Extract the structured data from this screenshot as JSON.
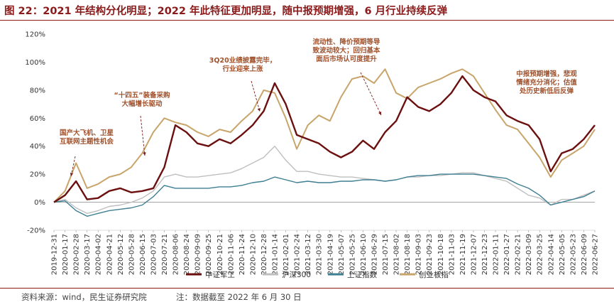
{
  "title": "图 22：2021 年结构分化明显；2022 年此特征更加明显，随中报预期增强，6 月行业持续反弹",
  "footer": {
    "source": "资料来源：wind，民生证券研究院",
    "note": "注：数据截至 2022 年 6 月 30 日"
  },
  "colors": {
    "title": "#8b1a1a",
    "zhongzheng_jungong": "#6b0f0f",
    "hushen300": "#bfbfbf",
    "shangzheng": "#3e7f92",
    "chuangye": "#c8a56a",
    "annotation": "#a0522d"
  },
  "chart_data": {
    "type": "line",
    "title": "",
    "xlabel": "",
    "ylabel": "",
    "ylim": [
      -20,
      120
    ],
    "yticks": [
      "120%",
      "100%",
      "80%",
      "60%",
      "40%",
      "20%",
      "0%",
      "-20%"
    ],
    "ytick_values": [
      120,
      100,
      80,
      60,
      40,
      20,
      0,
      -20
    ],
    "categories": [
      "2019-12-31",
      "2020-01-17",
      "2020-02-28",
      "2020-03-17",
      "2020-04-02",
      "2020-04-21",
      "2020-05-12",
      "2020-05-28",
      "2020-06-15",
      "2020-07-03",
      "2020-07-21",
      "2020-08-06",
      "2020-08-24",
      "2020-09-09",
      "2020-09-25",
      "2020-10-21",
      "2020-11-06",
      "2020-11-24",
      "2020-12-10",
      "2020-12-28",
      "2021-01-14",
      "2021-02-01",
      "2021-02-24",
      "2021-03-12",
      "2021-03-30",
      "2021-04-19",
      "2021-05-07",
      "2021-05-25",
      "2021-06-10",
      "2021-06-29",
      "2021-07-15",
      "2021-08-02",
      "2021-08-18",
      "2021-09-03",
      "2021-09-23",
      "2021-10-18",
      "2021-11-03",
      "2021-11-19",
      "2021-12-07",
      "2021-12-23",
      "2022-01-11",
      "2022-01-27",
      "2022-02-21",
      "2022-03-09",
      "2022-03-25",
      "2022-04-14",
      "2022-05-05",
      "2022-05-23",
      "2022-06-09",
      "2022-06-27"
    ],
    "series": [
      {
        "name": "中证军工",
        "values": [
          0,
          5,
          15,
          2,
          3,
          8,
          10,
          7,
          8,
          10,
          25,
          55,
          50,
          42,
          40,
          45,
          42,
          48,
          55,
          65,
          85,
          70,
          48,
          45,
          42,
          36,
          32,
          36,
          44,
          38,
          50,
          58,
          75,
          68,
          65,
          70,
          78,
          90,
          80,
          75,
          72,
          62,
          58,
          55,
          45,
          22,
          35,
          38,
          45,
          55
        ]
      },
      {
        "name": "沪深300",
        "values": [
          0,
          2,
          -4,
          -8,
          -6,
          -3,
          -2,
          0,
          3,
          8,
          18,
          20,
          18,
          18,
          19,
          20,
          21,
          24,
          28,
          32,
          40,
          30,
          22,
          22,
          20,
          19,
          18,
          18,
          17,
          16,
          15,
          16,
          18,
          18,
          19,
          19,
          20,
          21,
          21,
          19,
          17,
          15,
          10,
          5,
          3,
          -2,
          2,
          2,
          5,
          8
        ]
      },
      {
        "name": "上证指数",
        "values": [
          0,
          1,
          -6,
          -10,
          -8,
          -6,
          -5,
          -4,
          -2,
          4,
          12,
          10,
          10,
          10,
          10,
          11,
          11,
          12,
          14,
          15,
          18,
          16,
          14,
          15,
          14,
          14,
          15,
          15,
          16,
          16,
          15,
          16,
          18,
          19,
          19,
          20,
          20,
          20,
          20,
          19,
          18,
          17,
          13,
          10,
          5,
          -2,
          0,
          2,
          4,
          8
        ]
      },
      {
        "name": "创业板指",
        "values": [
          0,
          8,
          28,
          10,
          13,
          18,
          20,
          25,
          35,
          50,
          60,
          57,
          55,
          50,
          47,
          52,
          50,
          58,
          65,
          80,
          78,
          60,
          38,
          55,
          62,
          58,
          75,
          88,
          90,
          85,
          95,
          78,
          74,
          82,
          85,
          88,
          92,
          95,
          90,
          78,
          66,
          55,
          52,
          42,
          32,
          18,
          30,
          35,
          40,
          52
        ]
      }
    ],
    "annotations": [
      {
        "lines": [
          "国产大飞机、卫星",
          "互联网主题性机会"
        ]
      },
      {
        "lines": [
          "“十四五”装备采购",
          "大幅增长驱动"
        ]
      },
      {
        "lines": [
          "3Q20业绩披露完毕，",
          "行业迎来上涨"
        ]
      },
      {
        "lines": [
          "流动性、降价预期等导",
          "致波动较大；回归基本",
          "面后市场认可度提升"
        ]
      },
      {
        "lines": [
          "中报预期增强，悲观",
          "情绪充分消化；估值",
          "处历史新低后反弹"
        ]
      }
    ],
    "legend_position": "bottom-center"
  }
}
